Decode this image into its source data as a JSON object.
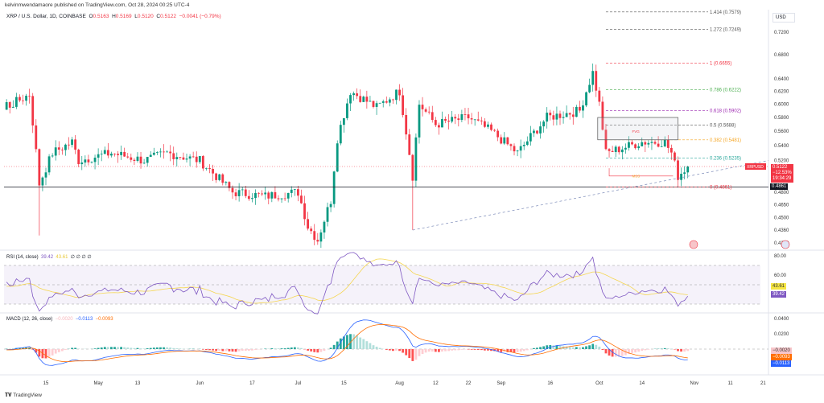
{
  "publisher_line": "kelvinmwendamaore published on TradingView.com, Oct 28, 2024 00:25 UTC-4",
  "legend": {
    "symbol": "XRP / U.S. Dollar, 1D, COINBASE",
    "o_label": "O",
    "o": "0.5163",
    "h_label": "H",
    "h": "0.5169",
    "l_label": "L",
    "l": "0.5120",
    "c_label": "C",
    "c": "0.5122",
    "change": "−0.0041 (−0.79%)"
  },
  "currency": "USD",
  "colors": {
    "up": "#089981",
    "down": "#f23645",
    "rsi": "#7e57c2",
    "rsi_ma": "#f5d651",
    "macd": "#2962ff",
    "signal": "#ff6d00"
  },
  "chart_data": {
    "type": "candlestick",
    "scale": "log",
    "ylim": [
      0.415,
      0.785
    ],
    "price_ticks": [
      "0.7200",
      "0.6800",
      "0.6400",
      "0.6200",
      "0.6000",
      "0.5800",
      "0.5600",
      "0.5400",
      "0.5200",
      "0.4800",
      "0.4650",
      "0.4500",
      "0.4360",
      "0.4220"
    ],
    "time_ticks": [
      "15",
      "May",
      "13",
      "Jun",
      "17",
      "Jul",
      "15",
      "Aug",
      "12",
      "22",
      "Sep",
      "16",
      "Oct",
      "14",
      "Nov",
      "11",
      "21"
    ],
    "approx_close_path": [
      [
        "2024-04-03",
        0.595
      ],
      [
        "2024-04-10",
        0.615
      ],
      [
        "2024-04-13",
        0.49
      ],
      [
        "2024-04-17",
        0.53
      ],
      [
        "2024-04-23",
        0.545
      ],
      [
        "2024-04-25",
        0.52
      ],
      [
        "2024-05-05",
        0.53
      ],
      [
        "2024-05-15",
        0.52
      ],
      [
        "2024-05-22",
        0.53
      ],
      [
        "2024-06-01",
        0.52
      ],
      [
        "2024-06-06",
        0.5
      ],
      [
        "2024-06-11",
        0.48
      ],
      [
        "2024-06-21",
        0.475
      ],
      [
        "2024-07-01",
        0.48
      ],
      [
        "2024-07-04",
        0.44
      ],
      [
        "2024-07-07",
        0.425
      ],
      [
        "2024-07-11",
        0.47
      ],
      [
        "2024-07-13",
        0.55
      ],
      [
        "2024-07-17",
        0.62
      ],
      [
        "2024-07-25",
        0.595
      ],
      [
        "2024-08-01",
        0.62
      ],
      [
        "2024-08-03",
        0.56
      ],
      [
        "2024-08-05",
        0.5
      ],
      [
        "2024-08-07",
        0.6
      ],
      [
        "2024-08-12",
        0.57
      ],
      [
        "2024-08-22",
        0.58
      ],
      [
        "2024-08-29",
        0.56
      ],
      [
        "2024-09-06",
        0.53
      ],
      [
        "2024-09-15",
        0.58
      ],
      [
        "2024-09-25",
        0.59
      ],
      [
        "2024-09-29",
        0.65
      ],
      [
        "2024-10-01",
        0.6
      ],
      [
        "2024-10-03",
        0.53
      ],
      [
        "2024-10-14",
        0.545
      ],
      [
        "2024-10-21",
        0.545
      ],
      [
        "2024-10-23",
        0.53
      ],
      [
        "2024-10-25",
        0.5
      ],
      [
        "2024-10-28",
        0.5122
      ]
    ],
    "fib_levels": [
      {
        "label": "1.414 (0.7579)",
        "price": 0.7579,
        "color": "#555555"
      },
      {
        "label": "1.272 (0.7249)",
        "price": 0.7249,
        "color": "#555555"
      },
      {
        "label": "1 (0.6655)",
        "price": 0.6655,
        "color": "#f23645"
      },
      {
        "label": "0.786 (0.6222)",
        "price": 0.6222,
        "color": "#4caf50"
      },
      {
        "label": "0.618 (0.5902)",
        "price": 0.5902,
        "color": "#9c27b0"
      },
      {
        "label": "0.5 (0.5688)",
        "price": 0.5688,
        "color": "#555555"
      },
      {
        "label": "0.382 (0.5481)",
        "price": 0.5481,
        "color": "#f5a623"
      },
      {
        "label": "0.236 (0.5235)",
        "price": 0.5235,
        "color": "#26a69a"
      },
      {
        "label": "0 (0.4861)",
        "price": 0.4861,
        "color": "#f23645"
      }
    ],
    "annotations": {
      "fvg": "FVG",
      "mss": "MSS"
    },
    "last_price": {
      "symbol": "XRPUSD",
      "price": "0.5122",
      "change": "−12.53%",
      "countdown": "19:34:29"
    },
    "support_level": "0.4861"
  },
  "rsi": {
    "title": "RSI (14, close)",
    "value": "39.42",
    "ma": "43.61",
    "extra": "∅ ∅ ∅ ∅",
    "ticks": [
      "80.00",
      "60.00"
    ]
  },
  "macd": {
    "title": "MACD (12, 26, close)",
    "hist": "−0.0020",
    "macd": "−0.0113",
    "signal": "−0.0093",
    "ticks": [
      "0.0400",
      "0.0200"
    ]
  },
  "footer": {
    "brand": "TradingView"
  }
}
